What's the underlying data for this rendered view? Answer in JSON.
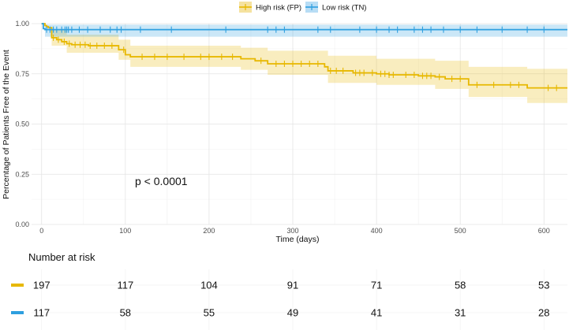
{
  "legend": {
    "items": [
      {
        "label": "High risk (FP)",
        "color": "#E7B800"
      },
      {
        "label": "Low risk (TN)",
        "color": "#2E9FDF"
      }
    ]
  },
  "pvalue_text": "p < 0.0001",
  "risk_table": {
    "title": "Number at risk",
    "times": [
      0,
      100,
      200,
      300,
      400,
      500,
      600
    ],
    "rows": [
      {
        "group": "High risk (FP)",
        "color": "#E7B800",
        "values": [
          "197",
          "117",
          "104",
          "91",
          "71",
          "58",
          "53"
        ]
      },
      {
        "group": "Low risk (TN)",
        "color": "#2E9FDF",
        "values": [
          "117",
          "58",
          "55",
          "49",
          "41",
          "31",
          "28"
        ]
      }
    ]
  },
  "chart_data": {
    "type": "line",
    "subtype": "kaplan-meier",
    "title": "",
    "xlabel": "Time (days)",
    "ylabel": "Percentage of Patients Free of the Event",
    "xlim": [
      -12,
      628
    ],
    "ylim": [
      0,
      1
    ],
    "xticks": [
      0,
      100,
      200,
      300,
      400,
      500,
      600
    ],
    "xtick_labels": [
      "0",
      "100",
      "200",
      "300",
      "400",
      "500",
      "600"
    ],
    "yticks": [
      0,
      0.25,
      0.5,
      0.75,
      1.0
    ],
    "ytick_labels": [
      "0.00",
      "0.25",
      "0.50",
      "0.75",
      "1.00"
    ],
    "grid": true,
    "legend_position": "top",
    "series": [
      {
        "name": "High risk (FP)",
        "color": "#E7B800",
        "steps": [
          [
            0,
            1.0
          ],
          [
            4,
            0.99
          ],
          [
            6,
            0.985
          ],
          [
            8,
            0.98
          ],
          [
            12,
            0.93
          ],
          [
            18,
            0.92
          ],
          [
            24,
            0.91
          ],
          [
            30,
            0.9
          ],
          [
            36,
            0.895
          ],
          [
            56,
            0.89
          ],
          [
            92,
            0.87
          ],
          [
            100,
            0.845
          ],
          [
            106,
            0.835
          ],
          [
            238,
            0.825
          ],
          [
            246,
            0.825
          ],
          [
            255,
            0.815
          ],
          [
            270,
            0.8
          ],
          [
            338,
            0.785
          ],
          [
            342,
            0.765
          ],
          [
            372,
            0.755
          ],
          [
            400,
            0.75
          ],
          [
            415,
            0.745
          ],
          [
            428,
            0.745
          ],
          [
            450,
            0.74
          ],
          [
            470,
            0.735
          ],
          [
            482,
            0.725
          ],
          [
            510,
            0.695
          ],
          [
            580,
            0.68
          ],
          [
            628,
            0.68
          ]
        ],
        "ci_upper": [
          [
            0,
            1.0
          ],
          [
            12,
            0.97
          ],
          [
            30,
            0.945
          ],
          [
            92,
            0.92
          ],
          [
            106,
            0.89
          ],
          [
            238,
            0.88
          ],
          [
            270,
            0.865
          ],
          [
            342,
            0.84
          ],
          [
            400,
            0.825
          ],
          [
            470,
            0.815
          ],
          [
            510,
            0.785
          ],
          [
            580,
            0.775
          ],
          [
            628,
            0.775
          ]
        ],
        "ci_lower": [
          [
            0,
            1.0
          ],
          [
            12,
            0.89
          ],
          [
            30,
            0.855
          ],
          [
            92,
            0.82
          ],
          [
            106,
            0.785
          ],
          [
            238,
            0.77
          ],
          [
            270,
            0.745
          ],
          [
            342,
            0.705
          ],
          [
            400,
            0.695
          ],
          [
            470,
            0.675
          ],
          [
            510,
            0.635
          ],
          [
            580,
            0.605
          ],
          [
            628,
            0.605
          ]
        ],
        "censor_times": [
          14,
          20,
          27,
          33,
          40,
          46,
          52,
          58,
          66,
          75,
          84,
          98,
          120,
          135,
          150,
          170,
          190,
          200,
          215,
          228,
          262,
          280,
          290,
          300,
          310,
          320,
          330,
          345,
          352,
          360,
          375,
          380,
          385,
          395,
          405,
          410,
          415,
          420,
          435,
          445,
          455,
          460,
          465,
          475,
          490,
          500,
          520,
          540,
          560,
          570,
          605,
          615
        ]
      },
      {
        "name": "Low risk (TN)",
        "color": "#2E9FDF",
        "steps": [
          [
            0,
            1.0
          ],
          [
            2,
            0.975
          ],
          [
            4,
            0.97
          ],
          [
            628,
            0.97
          ]
        ],
        "ci_upper": [
          [
            0,
            1.0
          ],
          [
            4,
            0.995
          ],
          [
            628,
            0.995
          ]
        ],
        "ci_lower": [
          [
            0,
            1.0
          ],
          [
            4,
            0.935
          ],
          [
            628,
            0.935
          ]
        ],
        "censor_times": [
          6,
          10,
          14,
          18,
          24,
          28,
          30,
          32,
          36,
          45,
          55,
          70,
          82,
          90,
          95,
          118,
          155,
          220,
          270,
          280,
          290,
          330,
          345,
          380,
          400,
          415,
          425,
          445,
          455,
          465,
          480,
          500,
          520,
          550,
          580,
          600
        ]
      }
    ]
  }
}
